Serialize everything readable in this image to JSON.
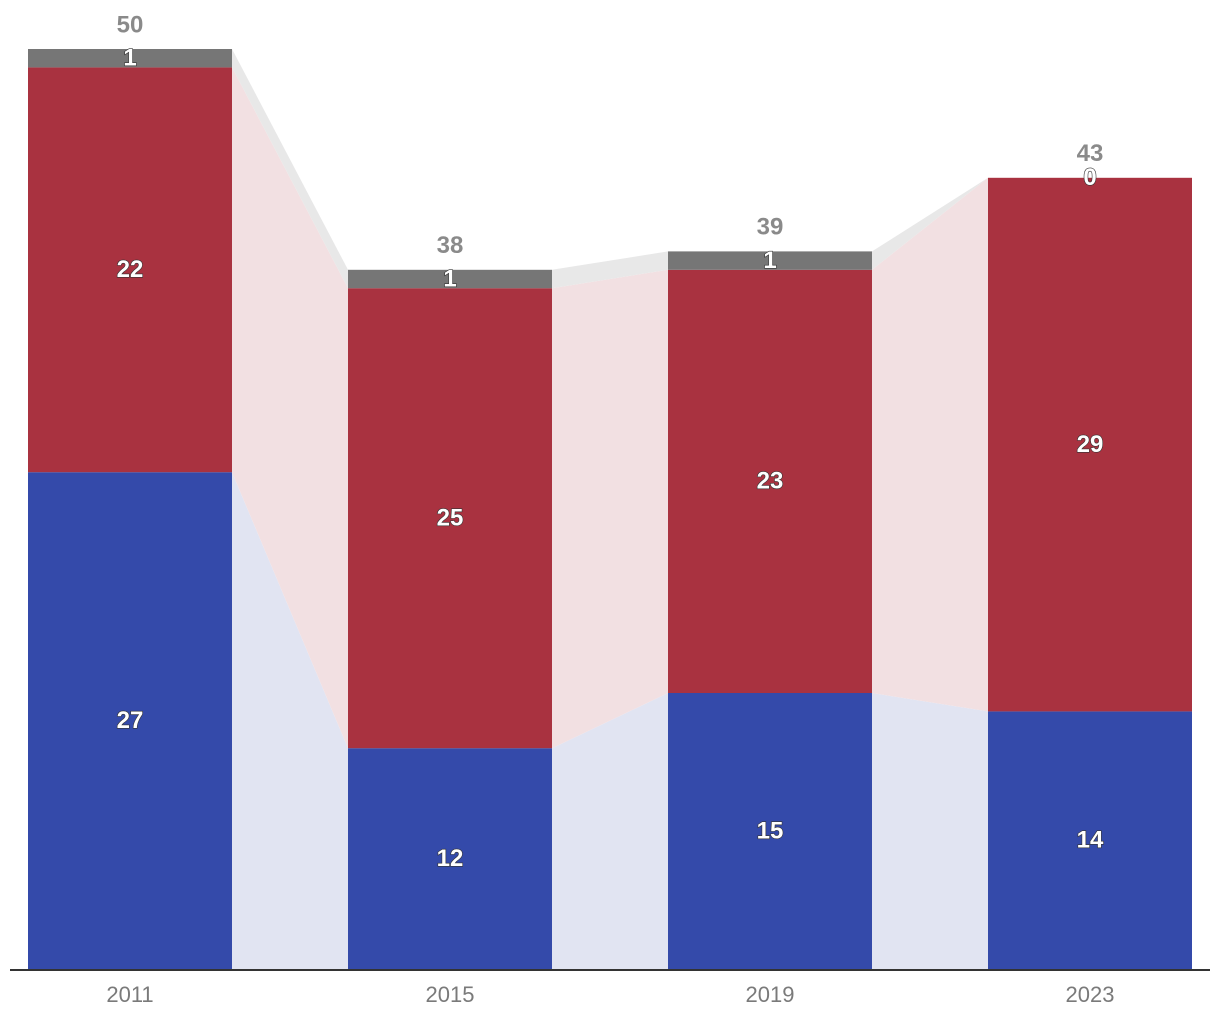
{
  "chart_data": {
    "type": "bar",
    "stacked": true,
    "categories": [
      "2011",
      "2015",
      "2019",
      "2023"
    ],
    "series": [
      {
        "values": [
          27,
          12,
          15,
          14
        ],
        "color": "#344aaa",
        "connector_color": "#e1e4f2"
      },
      {
        "values": [
          22,
          25,
          23,
          29
        ],
        "color": "#a93240",
        "connector_color": "#f2e0e2"
      },
      {
        "values": [
          1,
          1,
          1,
          0
        ],
        "color": "#767676",
        "connector_color": "#e8e8e8"
      }
    ],
    "totals": [
      50,
      38,
      39,
      43
    ],
    "ylim": [
      0,
      50
    ],
    "grid": false,
    "legend": "none",
    "title": "",
    "xlabel": "",
    "ylabel": ""
  }
}
